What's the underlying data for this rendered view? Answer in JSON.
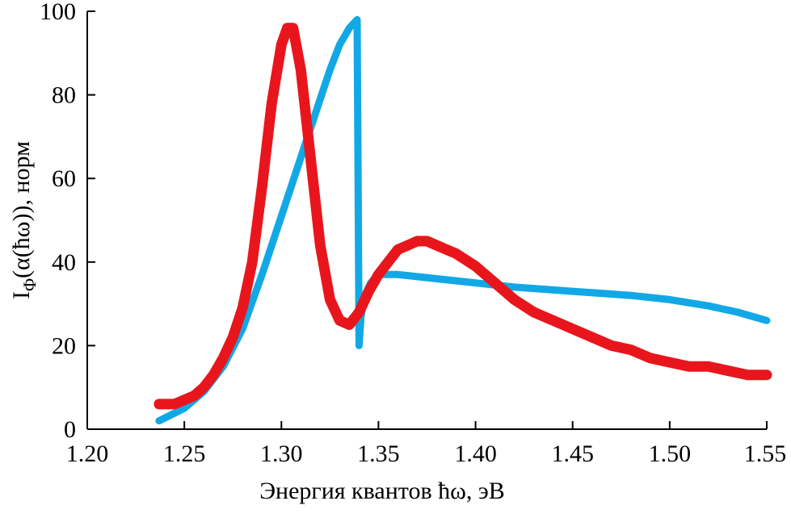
{
  "chart_data": {
    "type": "line",
    "xlabel": "Энергия квантов ħω, эВ",
    "ylabel_main": "I",
    "ylabel_sub": "Φ",
    "ylabel_rest": "(α(ħω)), норм",
    "xlim": [
      1.2,
      1.55
    ],
    "ylim": [
      0,
      100
    ],
    "xticks": [
      "1.20",
      "1.25",
      "1.30",
      "1.35",
      "1.40",
      "1.45",
      "1.50",
      "1.55"
    ],
    "yticks": [
      "0",
      "20",
      "40",
      "60",
      "80",
      "100"
    ],
    "grid": false,
    "series": [
      {
        "color": "#12a8e6",
        "x": [
          1.237,
          1.25,
          1.26,
          1.27,
          1.28,
          1.29,
          1.3,
          1.31,
          1.32,
          1.325,
          1.33,
          1.335,
          1.339,
          1.3395,
          1.34,
          1.341,
          1.343,
          1.346,
          1.35,
          1.36,
          1.38,
          1.4,
          1.42,
          1.45,
          1.48,
          1.5,
          1.52,
          1.535,
          1.55
        ],
        "y": [
          2,
          5,
          9,
          15,
          24,
          37,
          51,
          65,
          79,
          86,
          92,
          96,
          98,
          60,
          20,
          27,
          32,
          35,
          37,
          37,
          36,
          35,
          34,
          33,
          32,
          31,
          29.5,
          28,
          26
        ]
      },
      {
        "color": "#e8161c",
        "x": [
          1.237,
          1.245,
          1.25,
          1.255,
          1.26,
          1.265,
          1.27,
          1.275,
          1.28,
          1.285,
          1.29,
          1.295,
          1.3,
          1.303,
          1.306,
          1.31,
          1.315,
          1.32,
          1.325,
          1.33,
          1.335,
          1.34,
          1.345,
          1.35,
          1.355,
          1.36,
          1.365,
          1.37,
          1.375,
          1.38,
          1.385,
          1.39,
          1.4,
          1.41,
          1.42,
          1.43,
          1.44,
          1.45,
          1.46,
          1.47,
          1.48,
          1.49,
          1.5,
          1.51,
          1.52,
          1.53,
          1.54,
          1.55
        ],
        "y": [
          6,
          6,
          7,
          8,
          10,
          13,
          17,
          22,
          29,
          40,
          58,
          78,
          92,
          96,
          96,
          86,
          65,
          44,
          31,
          26,
          25,
          28,
          33,
          37,
          40,
          43,
          44,
          45,
          45,
          44,
          43,
          42,
          39,
          35,
          31,
          28,
          26,
          24,
          22,
          20,
          19,
          17,
          16,
          15,
          15,
          14,
          13,
          13
        ]
      }
    ]
  }
}
